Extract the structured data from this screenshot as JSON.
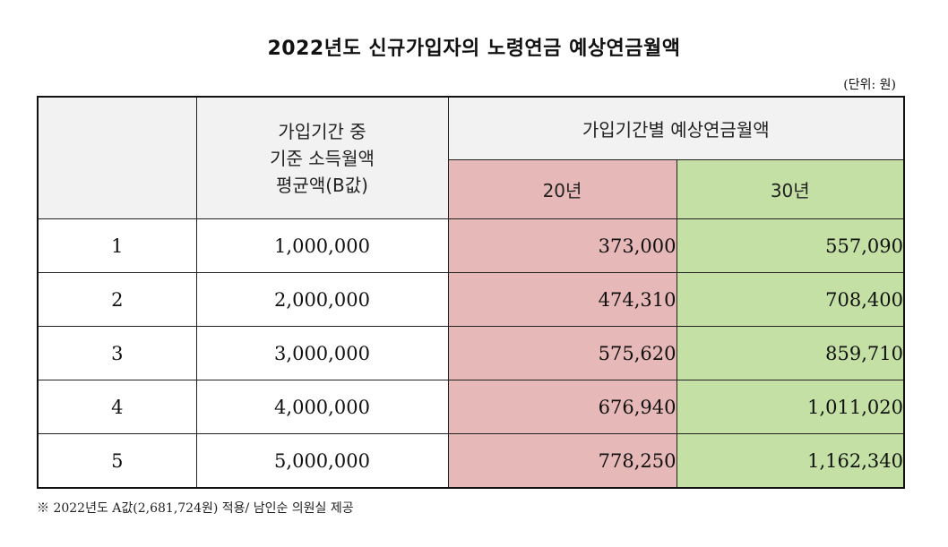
{
  "title": "2022년도 신규가입자의 노령연금 예상연금월액",
  "unit_label": "(단위: 원)",
  "header": {
    "avg_label_lines": [
      "가입기간 중",
      "기준 소득월액",
      "평균액(B값)"
    ],
    "group_label": "가입기간별 예상연금월액",
    "col_20": "20년",
    "col_30": "30년"
  },
  "rows": [
    {
      "idx": "1",
      "base": "1,000,000",
      "y20": "373,000",
      "y30": "557,090"
    },
    {
      "idx": "2",
      "base": "2,000,000",
      "y20": "474,310",
      "y30": "708,400"
    },
    {
      "idx": "3",
      "base": "3,000,000",
      "y20": "575,620",
      "y30": "859,710"
    },
    {
      "idx": "4",
      "base": "4,000,000",
      "y20": "676,940",
      "y30": "1,011,020"
    },
    {
      "idx": "5",
      "base": "5,000,000",
      "y20": "778,250",
      "y30": "1,162,340"
    }
  ],
  "footnote": "※ 2022년도 A값(2,681,724원) 적용/ 남인순 의원실 제공",
  "colors": {
    "header_bg": "#f2f2f2",
    "col20_bg": "#e6b8b7",
    "col30_bg": "#c4e0a4"
  }
}
